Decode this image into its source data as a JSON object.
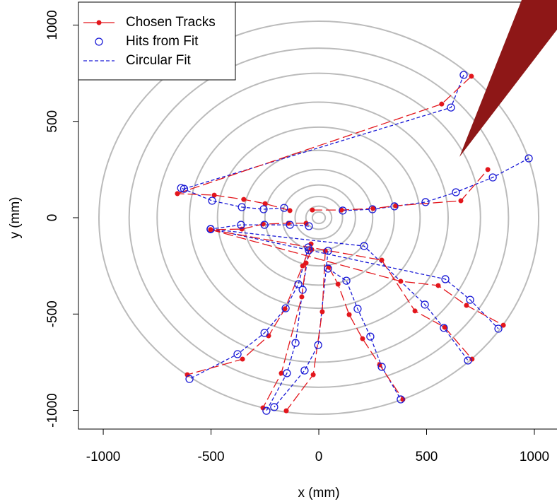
{
  "chart_data": {
    "type": "line",
    "xlabel": "x (mm)",
    "ylabel": "y (mm)",
    "xlim": [
      -1115,
      1105
    ],
    "ylim": [
      -1097,
      1119
    ],
    "xticks": [
      -1000,
      -500,
      0,
      500,
      1000
    ],
    "yticks": [
      -1000,
      -500,
      0,
      500,
      1000
    ],
    "rings": [
      30,
      60,
      110,
      170,
      250,
      350,
      470,
      600,
      750,
      880,
      1020
    ],
    "ring_color": "#bbbbbb",
    "legend": "top-left",
    "series": [
      {
        "name": "Chosen Tracks",
        "color": "#e3161c",
        "style": "dashed-with-dots",
        "x": [
          -30,
          105,
          252,
          357,
          659,
          784,
          null,
          -134,
          -249,
          -348,
          -485,
          -656,
          null,
          -656,
          570,
          708,
          null,
          -59,
          -141,
          -259,
          -357,
          -502,
          null,
          -502,
          380,
          554,
          685,
          856,
          null,
          -502,
          292,
          446,
          584,
          711,
          null,
          -36,
          -75,
          -157,
          -233,
          -354,
          -610,
          null,
          -33,
          -59,
          -79,
          -174,
          -259,
          null,
          30,
          16,
          -26,
          -151,
          null,
          46,
          89,
          141,
          203,
          282,
          390
        ],
        "y": [
          40,
          40,
          48,
          62,
          88,
          250,
          null,
          37,
          73,
          95,
          117,
          125,
          null,
          125,
          590,
          734,
          null,
          -29,
          -29,
          -33,
          -59,
          -62,
          null,
          -62,
          -330,
          -352,
          -455,
          -558,
          null,
          -62,
          -220,
          -484,
          -569,
          -734,
          null,
          -136,
          -250,
          -473,
          -613,
          -734,
          -815,
          null,
          -165,
          -235,
          -411,
          -807,
          -987,
          null,
          -172,
          -488,
          -815,
          -1002,
          null,
          -257,
          -345,
          -503,
          -628,
          -763,
          -943
        ]
      },
      {
        "name": "Hits from Fit",
        "color": "#1a1ad6",
        "style": "open-circles",
        "x": [
          111,
          249,
          351,
          495,
          636,
          807,
          974,
          null,
          -161,
          -256,
          -357,
          -495,
          -639,
          null,
          -625,
          613,
          672,
          null,
          -46,
          -134,
          -252,
          -361,
          -502,
          null,
          -502,
          587,
          702,
          833,
          null,
          -502,
          210,
          492,
          580,
          692,
          null,
          -49,
          -95,
          -154,
          -252,
          -377,
          -600,
          null,
          -46,
          -75,
          -108,
          -148,
          -243,
          null,
          43,
          -3,
          -66,
          -207,
          null,
          43,
          128,
          180,
          239,
          292,
          380
        ],
        "y": [
          37,
          44,
          59,
          81,
          132,
          209,
          308,
          null,
          51,
          44,
          55,
          88,
          154,
          null,
          150,
          572,
          741,
          null,
          -44,
          -37,
          -37,
          -37,
          -59,
          null,
          -59,
          -319,
          -426,
          -576,
          null,
          -59,
          -147,
          -451,
          -572,
          -741,
          null,
          -154,
          -345,
          -470,
          -598,
          -708,
          -837,
          null,
          -169,
          -374,
          -650,
          -807,
          -1002,
          null,
          -172,
          -661,
          -793,
          -983,
          null,
          -264,
          -327,
          -473,
          -617,
          -774,
          -943
        ]
      },
      {
        "name": "Circular Fit",
        "color": "#1a1ad6",
        "style": "dashed",
        "x": [
          111,
          249,
          351,
          495,
          636,
          807,
          974,
          null,
          -161,
          -256,
          -357,
          -495,
          -639,
          null,
          -625,
          613,
          672,
          null,
          -46,
          -134,
          -252,
          -361,
          -502,
          null,
          -502,
          587,
          702,
          833,
          null,
          -502,
          210,
          492,
          580,
          692,
          null,
          -49,
          -95,
          -154,
          -252,
          -377,
          -600,
          null,
          -46,
          -75,
          -108,
          -148,
          -243,
          null,
          43,
          -3,
          -66,
          -207,
          null,
          43,
          128,
          180,
          239,
          292,
          380
        ],
        "y": [
          37,
          44,
          59,
          81,
          132,
          209,
          308,
          null,
          51,
          44,
          55,
          88,
          154,
          null,
          150,
          572,
          741,
          null,
          -44,
          -37,
          -37,
          -37,
          -59,
          null,
          -59,
          -319,
          -426,
          -576,
          null,
          -59,
          -147,
          -451,
          -572,
          -741,
          null,
          -154,
          -345,
          -470,
          -598,
          -708,
          -837,
          null,
          -169,
          -374,
          -650,
          -807,
          -1002,
          null,
          -172,
          -661,
          -793,
          -983,
          null,
          -264,
          -327,
          -473,
          -617,
          -774,
          -943
        ]
      }
    ]
  }
}
